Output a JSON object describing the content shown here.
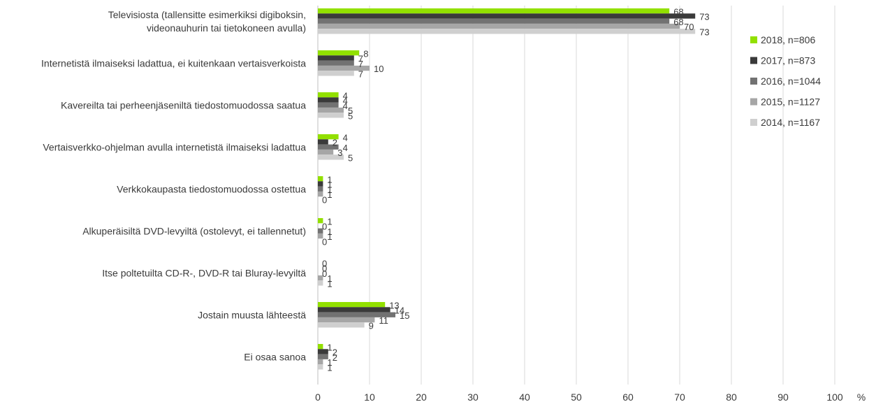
{
  "chart_data": {
    "type": "bar",
    "orientation": "horizontal",
    "categories": [
      "Televisiosta (tallensitte esimerkiksi digiboksin,|videonauhurin tai tietokoneen avulla)",
      "Internetistä ilmaiseksi ladattua, ei kuitenkaan vertaisverkoista",
      "Kavereilta tai perheenjäseniltä tiedostomuodossa saatua",
      "Vertaisverkko-ohjelman avulla internetistä ilmaiseksi ladattua",
      "Verkkokaupasta tiedostomuodossa ostettua",
      "Alkuperäisiltä DVD-levyiltä  (ostolevyt, ei tallennetut)",
      "Itse poltetuilta CD-R-, DVD-R tai Bluray-levyiltä",
      "Jostain muusta lähteestä",
      "Ei osaa sanoa"
    ],
    "series": [
      {
        "name": "2018, n=806",
        "color": "#92e000",
        "values": [
          68,
          8,
          4,
          4,
          1,
          1,
          0,
          13,
          1
        ]
      },
      {
        "name": "2017, n=873",
        "color": "#3a3a3a",
        "values": [
          73,
          7,
          4,
          2,
          1,
          0,
          0,
          14,
          2
        ]
      },
      {
        "name": "2016, n=1044",
        "color": "#727272",
        "values": [
          68,
          7,
          4,
          4,
          1,
          1,
          0,
          15,
          2
        ]
      },
      {
        "name": "2015, n=1127",
        "color": "#a6a6a6",
        "values": [
          70,
          10,
          5,
          3,
          1,
          1,
          1,
          11,
          1
        ]
      },
      {
        "name": "2014, n=1167",
        "color": "#cfcfcf",
        "values": [
          73,
          7,
          5,
          5,
          0,
          0,
          1,
          9,
          1
        ]
      }
    ],
    "xlim": [
      0,
      100
    ],
    "xticks": [
      0,
      10,
      20,
      30,
      40,
      50,
      60,
      70,
      80,
      90,
      100
    ],
    "xunit": "%",
    "title": "",
    "xlabel": "",
    "ylabel": "",
    "grid": true,
    "legend_position": "right"
  }
}
